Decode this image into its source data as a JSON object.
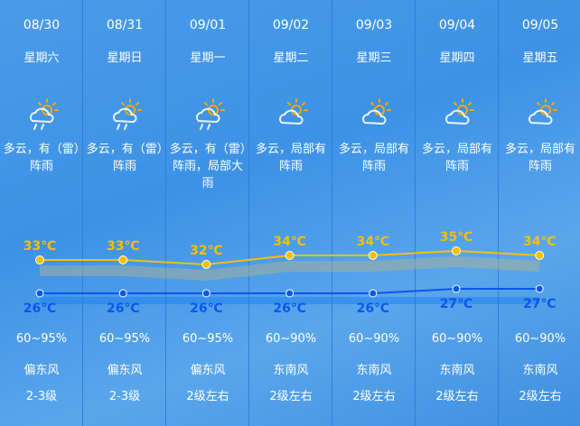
{
  "days": [
    {
      "date": "08/30",
      "week": "星期六",
      "icon": "cloud-sun-rain-icon",
      "desc": "多云，有（雷）阵雨",
      "high": 33,
      "low": 26,
      "high_label": "33℃",
      "low_label": "26℃",
      "humidity": "60~95%",
      "wind_dir": "偏东风",
      "wind_level": "2-3级"
    },
    {
      "date": "08/31",
      "week": "星期日",
      "icon": "cloud-sun-rain-icon",
      "desc": "多云，有（雷）阵雨",
      "high": 33,
      "low": 26,
      "high_label": "33℃",
      "low_label": "26℃",
      "humidity": "60~95%",
      "wind_dir": "偏东风",
      "wind_level": "2-3级"
    },
    {
      "date": "09/01",
      "week": "星期一",
      "icon": "cloud-sun-rain-icon",
      "desc": "多云，有（雷）阵雨，局部大雨",
      "high": 32,
      "low": 26,
      "high_label": "32℃",
      "low_label": "26℃",
      "humidity": "60~95%",
      "wind_dir": "偏东风",
      "wind_level": "2级左右"
    },
    {
      "date": "09/02",
      "week": "星期二",
      "icon": "cloud-sun-icon",
      "desc": "多云，局部有阵雨",
      "high": 34,
      "low": 26,
      "high_label": "34℃",
      "low_label": "26℃",
      "humidity": "60~90%",
      "wind_dir": "东南风",
      "wind_level": "2级左右"
    },
    {
      "date": "09/03",
      "week": "星期三",
      "icon": "cloud-sun-icon",
      "desc": "多云，局部有阵雨",
      "high": 34,
      "low": 26,
      "high_label": "34℃",
      "low_label": "26℃",
      "humidity": "60~90%",
      "wind_dir": "东南风",
      "wind_level": "2级左右"
    },
    {
      "date": "09/04",
      "week": "星期四",
      "icon": "cloud-sun-icon",
      "desc": "多云，局部有阵雨",
      "high": 35,
      "low": 27,
      "high_label": "35℃",
      "low_label": "27℃",
      "humidity": "60~90%",
      "wind_dir": "东南风",
      "wind_level": "2级左右"
    },
    {
      "date": "09/05",
      "week": "星期五",
      "icon": "cloud-sun-icon",
      "desc": "多云，局部有阵雨",
      "high": 34,
      "low": 27,
      "high_label": "34℃",
      "low_label": "27℃",
      "humidity": "60~90%",
      "wind_dir": "东南风",
      "wind_level": "2级左右"
    }
  ],
  "colors": {
    "high": "#f5c000",
    "low": "#0a56ee"
  }
}
